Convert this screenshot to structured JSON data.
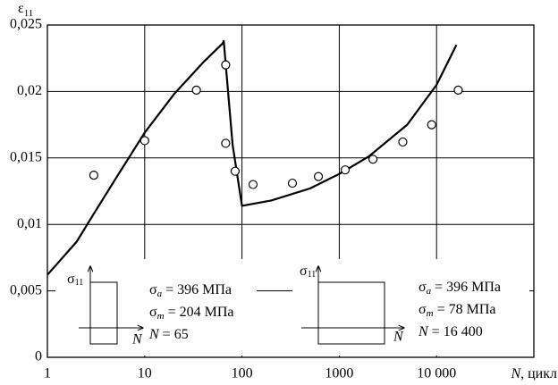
{
  "chart_data": {
    "type": "line",
    "y_label": {
      "symbol": "ε",
      "subscript": "11"
    },
    "x_label": {
      "symbol": "N",
      "rest": ", цикл"
    },
    "log_x": true,
    "grid": true,
    "xlim": [
      1,
      100000
    ],
    "xticks": [
      1,
      10,
      100,
      1000,
      {
        "value": 10000,
        "label": "10 000"
      }
    ],
    "ylim": [
      0,
      0.025
    ],
    "yticks": [
      0,
      {
        "value": 0.005,
        "label": "0,005"
      },
      {
        "value": 0.01,
        "label": "0,01"
      },
      {
        "value": 0.015,
        "label": "0,015"
      },
      {
        "value": 0.02,
        "label": "0,02"
      },
      {
        "value": 0.025,
        "label": "0,025"
      }
    ],
    "line": {
      "color": "#000000",
      "x": [
        1,
        2,
        3,
        5,
        10,
        20,
        40,
        63,
        65,
        80,
        100,
        200,
        500,
        1000,
        2000,
        5000,
        10000,
        16000
      ],
      "values": [
        0.0062,
        0.0087,
        0.0108,
        0.0134,
        0.0169,
        0.0198,
        0.0222,
        0.0236,
        0.0238,
        0.016,
        0.0114,
        0.0118,
        0.0127,
        0.0138,
        0.0151,
        0.0175,
        0.0205,
        0.0235
      ]
    },
    "points": {
      "color": "#000000",
      "x": [
        3,
        10,
        34,
        68,
        68,
        85,
        130,
        330,
        610,
        1150,
        2220,
        4500,
        8900,
        16700
      ],
      "values": [
        0.0137,
        0.0163,
        0.0201,
        0.022,
        0.0161,
        0.014,
        0.013,
        0.0131,
        0.0136,
        0.0141,
        0.0149,
        0.0162,
        0.0175,
        0.0201
      ]
    },
    "insets": [
      {
        "axis_label": {
          "symbol": "σ",
          "subscript": "11"
        },
        "n_label": "N",
        "lines": [
          {
            "symbol": "σ",
            "subscript": "a",
            "rest": " = 396 МПа"
          },
          {
            "symbol": "σ",
            "subscript": "m",
            "rest": " = 204 МПа"
          },
          {
            "symbol": "N",
            "subscript": "",
            "rest": " = 65"
          }
        ]
      },
      {
        "axis_label": {
          "symbol": "σ",
          "subscript": "11"
        },
        "n_label": "N",
        "lines": [
          {
            "symbol": "σ",
            "subscript": "a",
            "rest": " = 396 МПа"
          },
          {
            "symbol": "σ",
            "subscript": "m",
            "rest": " = 78 МПа"
          },
          {
            "symbol": "N",
            "subscript": "",
            "rest": " = 16 400"
          }
        ]
      }
    ]
  }
}
